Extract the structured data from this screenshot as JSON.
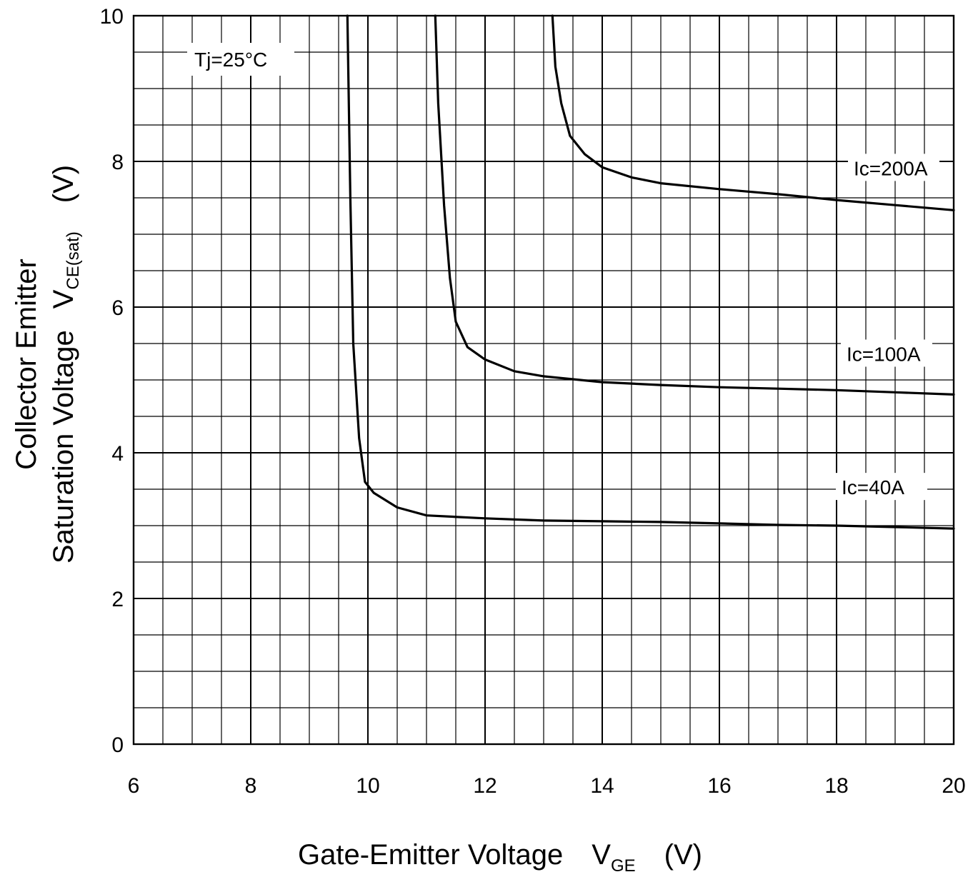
{
  "chart_data": {
    "type": "line",
    "xlabel": {
      "main": "Gate-Emitter Voltage",
      "symbol": "V",
      "subscript": "GE",
      "unit": "(V)"
    },
    "ylabel": {
      "line1": "Collector Emitter",
      "line2": "Saturation Voltage",
      "symbol": "V",
      "subscript": "CE(sat)",
      "unit": "(V)"
    },
    "xlim": [
      6,
      20
    ],
    "ylim": [
      0,
      10
    ],
    "x_ticks": [
      6,
      8,
      10,
      12,
      14,
      16,
      18,
      20
    ],
    "y_ticks": [
      0,
      2,
      4,
      6,
      8,
      10
    ],
    "grid": true,
    "annotation": "Tj=25°C",
    "series": [
      {
        "name": "Ic=200A",
        "points": [
          [
            13.15,
            10
          ],
          [
            13.2,
            9.3
          ],
          [
            13.3,
            8.8
          ],
          [
            13.45,
            8.35
          ],
          [
            13.7,
            8.1
          ],
          [
            14,
            7.92
          ],
          [
            14.5,
            7.78
          ],
          [
            15,
            7.7
          ],
          [
            16,
            7.62
          ],
          [
            17,
            7.55
          ],
          [
            18,
            7.47
          ],
          [
            19,
            7.4
          ],
          [
            20,
            7.33
          ]
        ]
      },
      {
        "name": "Ic=100A",
        "points": [
          [
            11.15,
            10
          ],
          [
            11.2,
            8.8
          ],
          [
            11.3,
            7.4
          ],
          [
            11.4,
            6.4
          ],
          [
            11.5,
            5.8
          ],
          [
            11.7,
            5.45
          ],
          [
            12,
            5.28
          ],
          [
            12.5,
            5.12
          ],
          [
            13,
            5.05
          ],
          [
            14,
            4.97
          ],
          [
            15,
            4.93
          ],
          [
            16,
            4.9
          ],
          [
            17,
            4.88
          ],
          [
            18,
            4.86
          ],
          [
            19,
            4.83
          ],
          [
            20,
            4.8
          ]
        ]
      },
      {
        "name": "Ic=40A",
        "points": [
          [
            9.65,
            10
          ],
          [
            9.7,
            7.5
          ],
          [
            9.75,
            5.5
          ],
          [
            9.85,
            4.2
          ],
          [
            9.95,
            3.6
          ],
          [
            10.1,
            3.45
          ],
          [
            10.5,
            3.25
          ],
          [
            11,
            3.14
          ],
          [
            12,
            3.1
          ],
          [
            13,
            3.07
          ],
          [
            14,
            3.06
          ],
          [
            15,
            3.05
          ],
          [
            16,
            3.03
          ],
          [
            17,
            3.01
          ],
          [
            18,
            3.0
          ],
          [
            19,
            2.98
          ],
          [
            20,
            2.96
          ]
        ]
      }
    ]
  }
}
